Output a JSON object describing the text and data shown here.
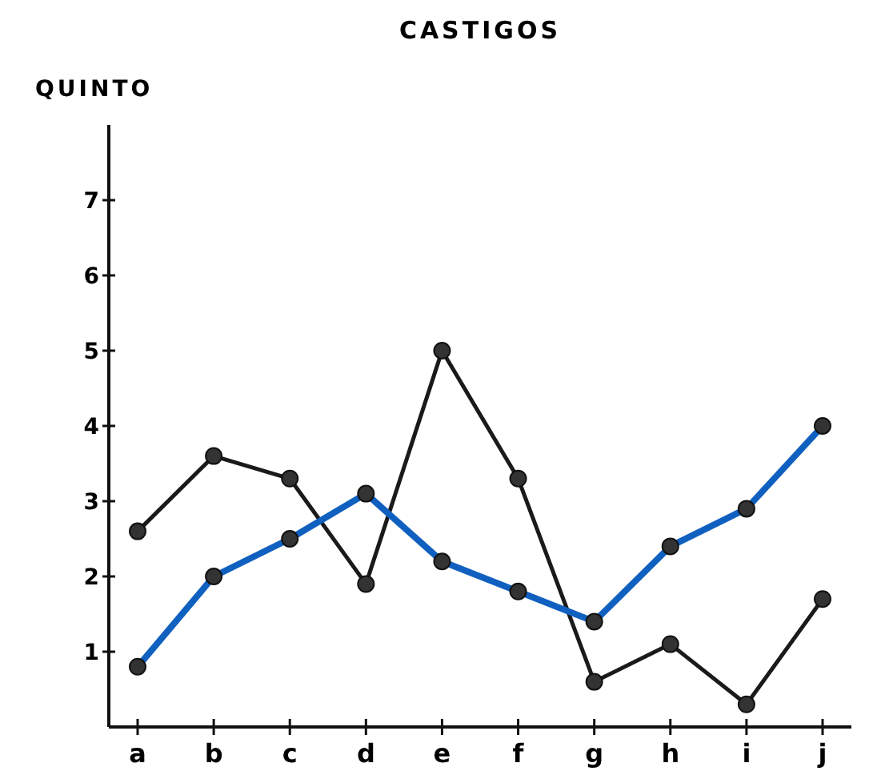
{
  "chart_data": {
    "type": "line",
    "title": "CASTIGOS",
    "ylabel": "QUINTO",
    "categories": [
      "a",
      "b",
      "c",
      "d",
      "e",
      "f",
      "g",
      "h",
      "i",
      "j"
    ],
    "series": [
      {
        "color": "#1a1a1a",
        "values": [
          2.6,
          3.6,
          3.3,
          1.9,
          5.0,
          3.3,
          0.6,
          1.1,
          0.3,
          1.7
        ]
      },
      {
        "color": "#1060c0",
        "values": [
          0.8,
          2.0,
          2.5,
          3.1,
          2.2,
          1.8,
          1.4,
          2.4,
          2.9,
          4.0
        ]
      }
    ],
    "ylim": [
      0,
      8
    ],
    "yticks": [
      1,
      2,
      3,
      4,
      5,
      6,
      7
    ],
    "grid": false,
    "marker": "circle",
    "line_style": "solid"
  }
}
